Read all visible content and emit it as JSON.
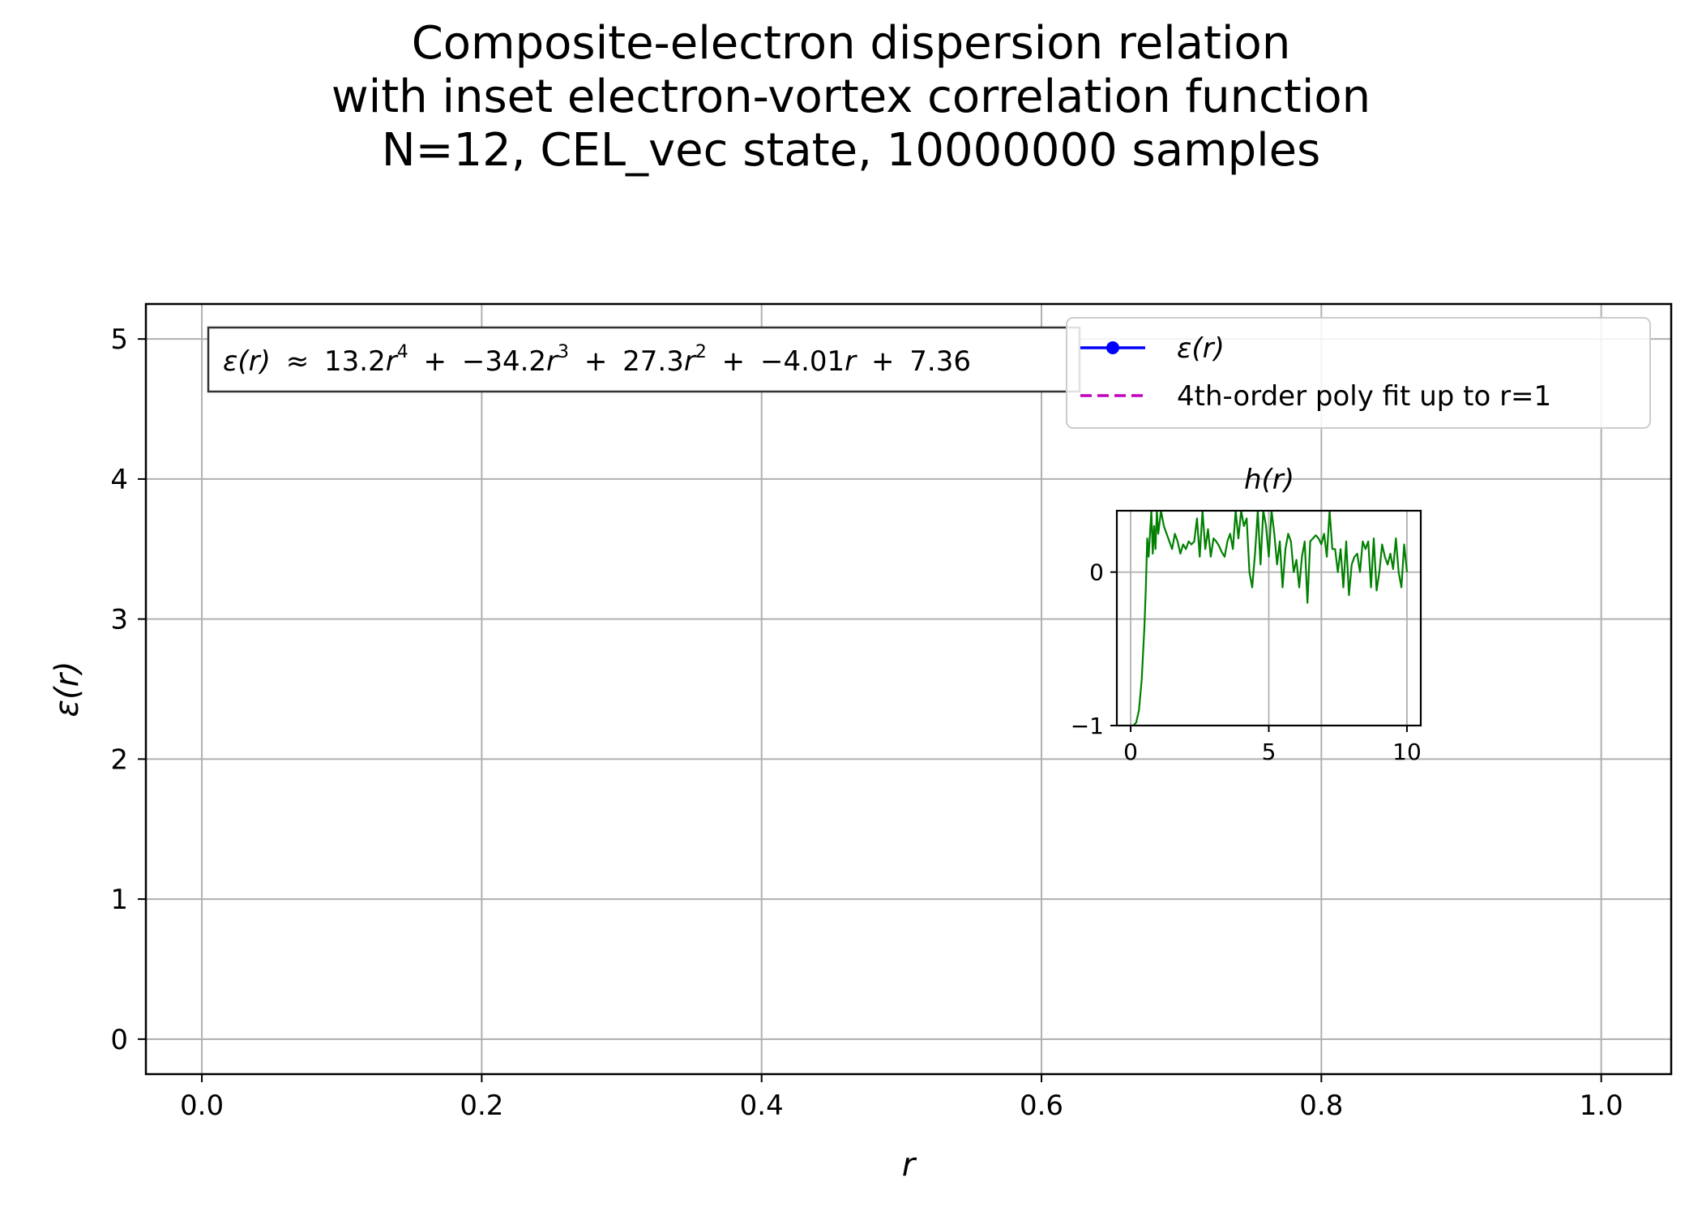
{
  "title_lines": [
    "Composite-electron dispersion relation",
    "with inset electron-vortex correlation function",
    "N=12, CEL_vec state, 10000000 samples"
  ],
  "colors": {
    "epsilon_series": "#0000ff",
    "fit_series": "#bf00bf",
    "h_series": "#008000",
    "grid": "#b0b0b0",
    "axes": "#000000"
  },
  "chart_data": [
    {
      "type": "line",
      "xlabel": "r",
      "ylabel": "ε(r)",
      "xlim": [
        -0.04,
        1.05
      ],
      "ylim": [
        -0.25,
        5.25
      ],
      "x_ticks": [
        0.0,
        0.2,
        0.4,
        0.6,
        0.8,
        1.0
      ],
      "x_tick_labels": [
        "0.0",
        "0.2",
        "0.4",
        "0.6",
        "0.8",
        "1.0"
      ],
      "y_ticks": [
        0,
        1,
        2,
        3,
        4,
        5
      ],
      "y_tick_labels": [
        "0",
        "1",
        "2",
        "3",
        "4",
        "5"
      ],
      "grid": true,
      "legend_position": "upper right",
      "annotation": {
        "lhs": "ε(r)",
        "approx": "≈",
        "c4": "13.2",
        "c3": "−34.2",
        "c2": "27.3",
        "c1": "−4.01",
        "c0": "7.36",
        "var": "r",
        "plus": "+"
      },
      "series": [
        {
          "name": "ε(r)",
          "style": "solid line with circle markers",
          "x": [],
          "y": []
        },
        {
          "name": "4th-order poly fit up to r=1",
          "style": "dashed",
          "x": [],
          "y": []
        }
      ]
    },
    {
      "type": "line",
      "title": "h(r)",
      "xlim": [
        -0.5,
        10.5
      ],
      "ylim": [
        -1.0,
        0.4
      ],
      "x_ticks": [
        0,
        5,
        10
      ],
      "x_tick_labels": [
        "0",
        "5",
        "10"
      ],
      "y_ticks": [
        -1,
        0
      ],
      "y_tick_labels": [
        "−1",
        "0"
      ],
      "grid": true,
      "series": [
        {
          "name": "h(r)",
          "x": [
            0.0,
            0.1,
            0.2,
            0.3,
            0.4,
            0.5,
            0.55,
            0.6,
            0.65,
            0.7,
            0.75,
            0.8,
            0.85,
            0.9,
            0.95,
            1.0,
            1.1,
            1.2,
            1.3,
            1.4,
            1.5,
            1.6,
            1.7,
            1.8,
            1.9,
            2.0,
            2.1,
            2.2,
            2.3,
            2.4,
            2.5,
            2.6,
            2.7,
            2.8,
            2.9,
            3.0,
            3.1,
            3.2,
            3.3,
            3.4,
            3.5,
            3.6,
            3.7,
            3.8,
            3.9,
            4.0,
            4.1,
            4.2,
            4.3,
            4.4,
            4.5,
            4.6,
            4.7,
            4.8,
            4.9,
            5.0,
            5.1,
            5.2,
            5.3,
            5.4,
            5.5,
            5.6,
            5.7,
            5.8,
            5.9,
            6.0,
            6.1,
            6.2,
            6.3,
            6.4,
            6.5,
            6.6,
            6.7,
            6.8,
            6.9,
            7.0,
            7.1,
            7.2,
            7.3,
            7.4,
            7.5,
            7.6,
            7.7,
            7.8,
            7.9,
            8.0,
            8.1,
            8.2,
            8.3,
            8.4,
            8.5,
            8.6,
            8.7,
            8.8,
            8.9,
            9.0,
            9.1,
            9.2,
            9.3,
            9.4,
            9.5,
            9.6,
            9.7,
            9.8,
            9.9,
            10.0
          ],
          "y": [
            -1.0,
            -1.0,
            -0.98,
            -0.9,
            -0.7,
            -0.35,
            -0.1,
            0.22,
            0.1,
            0.25,
            0.4,
            0.12,
            0.3,
            0.15,
            0.4,
            0.25,
            0.4,
            0.3,
            0.25,
            0.2,
            0.15,
            0.25,
            0.2,
            0.12,
            0.18,
            0.15,
            0.2,
            0.18,
            0.2,
            0.35,
            0.1,
            0.4,
            0.15,
            0.28,
            0.1,
            0.22,
            0.2,
            0.17,
            0.13,
            0.1,
            0.2,
            0.25,
            0.15,
            0.4,
            0.22,
            0.4,
            0.3,
            0.35,
            0.0,
            -0.1,
            0.12,
            0.4,
            0.05,
            0.4,
            0.3,
            0.1,
            0.4,
            0.25,
            0.05,
            0.2,
            -0.1,
            0.15,
            0.25,
            0.2,
            0.0,
            0.08,
            -0.1,
            0.1,
            0.2,
            -0.2,
            0.2,
            0.22,
            0.24,
            0.22,
            0.18,
            0.25,
            0.1,
            0.4,
            0.15,
            0.15,
            0.0,
            0.15,
            -0.1,
            0.2,
            -0.15,
            0.05,
            0.1,
            0.12,
            0.0,
            0.2,
            0.15,
            0.2,
            -0.1,
            0.22,
            -0.12,
            0.0,
            0.18,
            0.1,
            0.05,
            0.12,
            0.02,
            0.22,
            0.0,
            -0.1,
            0.18,
            0.0
          ]
        }
      ]
    }
  ]
}
